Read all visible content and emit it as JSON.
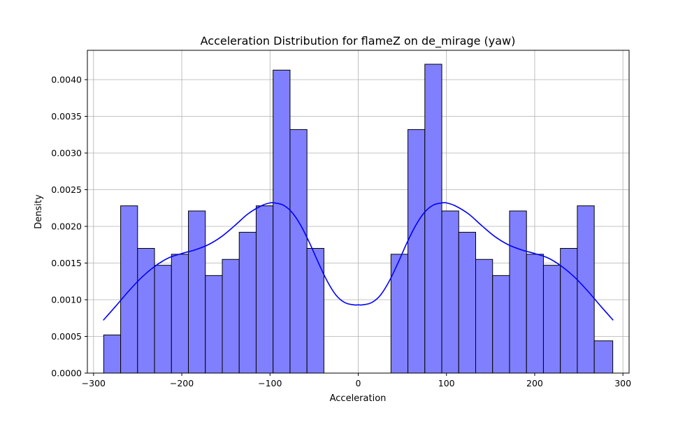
{
  "chart_data": {
    "type": "bar",
    "title": "Acceleration Distribution for flameZ on de_mirage (yaw)",
    "xlabel": "Acceleration",
    "ylabel": "Density",
    "xlim": [
      -307,
      307
    ],
    "ylim": [
      0,
      0.0044
    ],
    "grid": true,
    "x_ticks": [
      -300,
      -200,
      -100,
      0,
      100,
      200,
      300
    ],
    "x_tick_labels": [
      "−300",
      "−200",
      "−100",
      "0",
      "100",
      "200",
      "300"
    ],
    "y_ticks": [
      0,
      0.0005,
      0.001,
      0.0015,
      0.002,
      0.0025,
      0.003,
      0.0035,
      0.004
    ],
    "y_tick_labels": [
      "0.0000",
      "0.0005",
      "0.0010",
      "0.0015",
      "0.0020",
      "0.0025",
      "0.0030",
      "0.0035",
      "0.0040"
    ],
    "bar_color": "#8080ff",
    "bar_edge_color": "#000000",
    "kde_color": "#0000ff",
    "bins": [
      {
        "x0": -288.5,
        "x1": -269.3,
        "density": 0.00052
      },
      {
        "x0": -269.3,
        "x1": -250.1,
        "density": 0.00228
      },
      {
        "x0": -250.1,
        "x1": -230.9,
        "density": 0.0017
      },
      {
        "x0": -230.9,
        "x1": -211.7,
        "density": 0.00147
      },
      {
        "x0": -211.7,
        "x1": -192.5,
        "density": 0.00162
      },
      {
        "x0": -192.5,
        "x1": -173.3,
        "density": 0.00221
      },
      {
        "x0": -173.3,
        "x1": -154.1,
        "density": 0.00133
      },
      {
        "x0": -154.1,
        "x1": -134.9,
        "density": 0.00155
      },
      {
        "x0": -134.9,
        "x1": -115.7,
        "density": 0.00192
      },
      {
        "x0": -115.7,
        "x1": -96.5,
        "density": 0.00228
      },
      {
        "x0": -96.5,
        "x1": -77.3,
        "density": 0.00413
      },
      {
        "x0": -77.3,
        "x1": -58.1,
        "density": 0.00332
      },
      {
        "x0": -58.1,
        "x1": -38.9,
        "density": 0.0017
      },
      {
        "x0": 37.1,
        "x1": 56.3,
        "density": 0.00162
      },
      {
        "x0": 56.3,
        "x1": 75.5,
        "density": 0.00332
      },
      {
        "x0": 75.5,
        "x1": 94.7,
        "density": 0.00421
      },
      {
        "x0": 94.7,
        "x1": 113.9,
        "density": 0.00221
      },
      {
        "x0": 113.9,
        "x1": 133.1,
        "density": 0.00192
      },
      {
        "x0": 133.1,
        "x1": 152.3,
        "density": 0.00155
      },
      {
        "x0": 152.3,
        "x1": 171.5,
        "density": 0.00133
      },
      {
        "x0": 171.5,
        "x1": 190.7,
        "density": 0.00221
      },
      {
        "x0": 190.7,
        "x1": 209.9,
        "density": 0.00162
      },
      {
        "x0": 209.9,
        "x1": 229.1,
        "density": 0.00147
      },
      {
        "x0": 229.1,
        "x1": 248.3,
        "density": 0.0017
      },
      {
        "x0": 248.3,
        "x1": 267.5,
        "density": 0.00228
      },
      {
        "x0": 267.5,
        "x1": 288.5,
        "density": 0.00044
      }
    ],
    "kde": {
      "x": [
        -289,
        -275,
        -260,
        -245,
        -230,
        -215,
        -200,
        -185,
        -170,
        -155,
        -140,
        -125,
        -110,
        -100,
        -95,
        -85,
        -75,
        -65,
        -55,
        -45,
        -35,
        -25,
        -15,
        -5,
        0,
        5,
        15,
        25,
        35,
        45,
        55,
        65,
        75,
        85,
        95,
        100,
        110,
        125,
        140,
        155,
        170,
        185,
        200,
        215,
        230,
        245,
        260,
        275,
        289
      ],
      "y": [
        0.00072,
        0.00091,
        0.00112,
        0.00131,
        0.00146,
        0.00157,
        0.00163,
        0.00168,
        0.00175,
        0.00186,
        0.00201,
        0.00217,
        0.00228,
        0.00232,
        0.00232,
        0.00229,
        0.00219,
        0.00201,
        0.00177,
        0.0015,
        0.00125,
        0.00106,
        0.00096,
        0.00093,
        0.00093,
        0.00093,
        0.00096,
        0.00106,
        0.00125,
        0.0015,
        0.00177,
        0.00201,
        0.00219,
        0.00229,
        0.00232,
        0.00232,
        0.00228,
        0.00217,
        0.00201,
        0.00186,
        0.00175,
        0.00168,
        0.00163,
        0.00157,
        0.00146,
        0.00131,
        0.00112,
        0.00091,
        0.00072
      ]
    }
  }
}
